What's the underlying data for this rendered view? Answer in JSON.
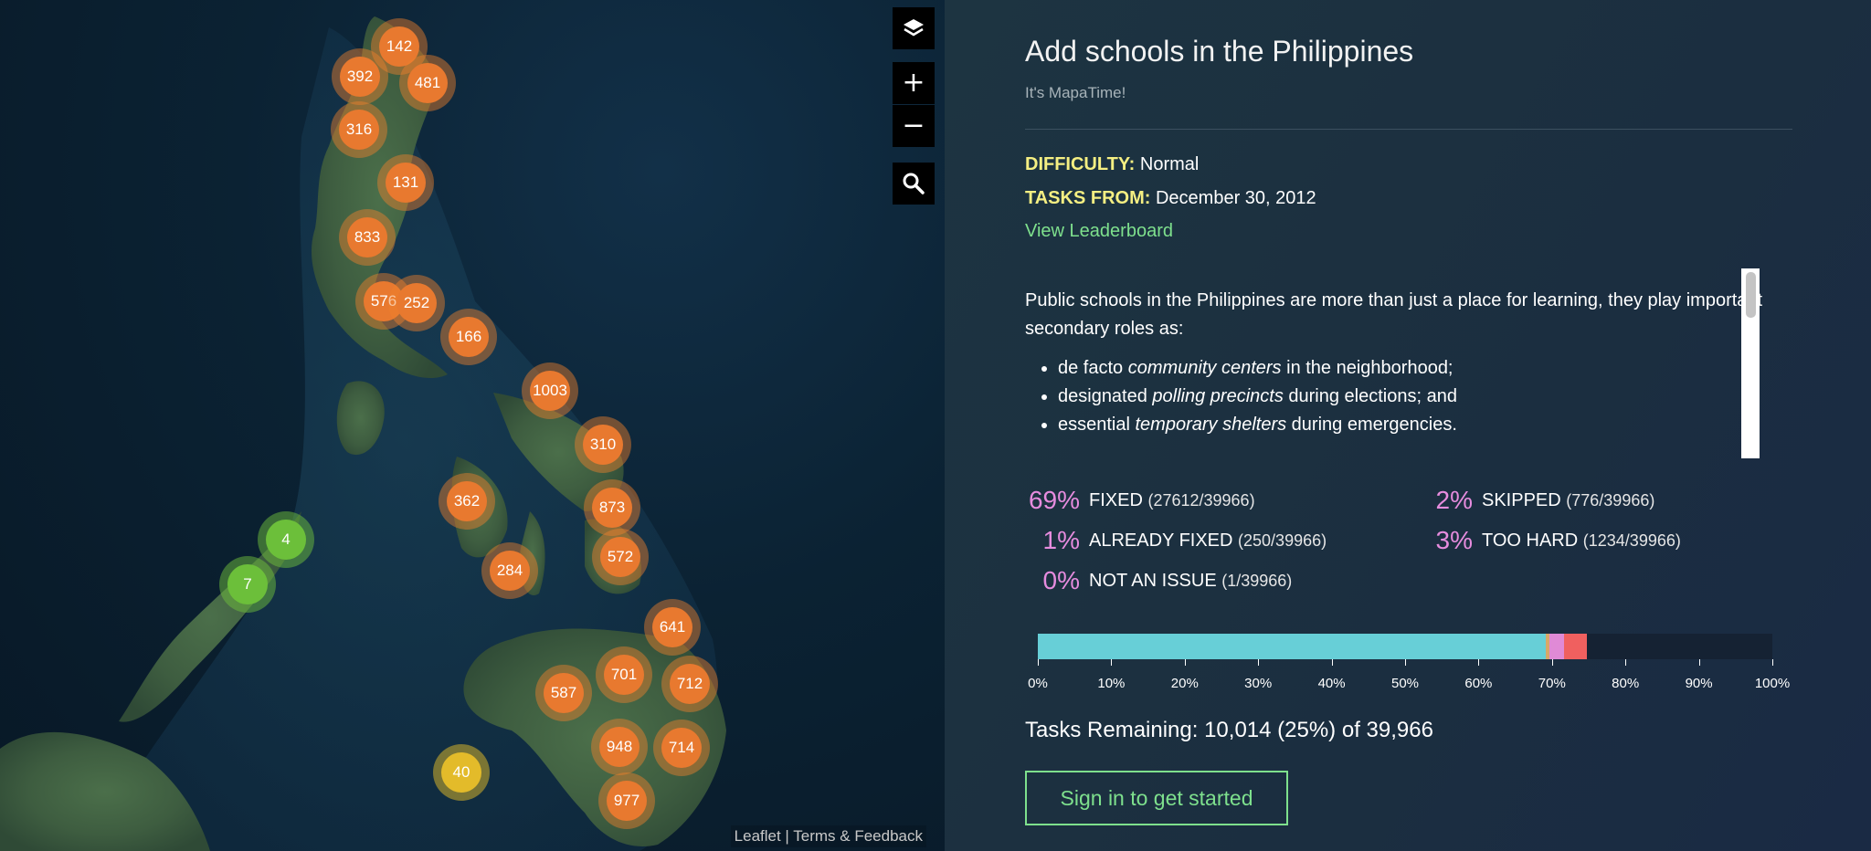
{
  "map": {
    "clusters": [
      {
        "label": "142",
        "color": "orange"
      },
      {
        "label": "392",
        "color": "orange"
      },
      {
        "label": "481",
        "color": "orange"
      },
      {
        "label": "316",
        "color": "orange"
      },
      {
        "label": "131",
        "color": "orange"
      },
      {
        "label": "833",
        "color": "orange"
      },
      {
        "label": "576",
        "color": "orange"
      },
      {
        "label": "252",
        "color": "orange"
      },
      {
        "label": "166",
        "color": "orange"
      },
      {
        "label": "1003",
        "color": "orange"
      },
      {
        "label": "310",
        "color": "orange"
      },
      {
        "label": "362",
        "color": "orange"
      },
      {
        "label": "873",
        "color": "orange"
      },
      {
        "label": "4",
        "color": "green"
      },
      {
        "label": "572",
        "color": "orange"
      },
      {
        "label": "284",
        "color": "orange"
      },
      {
        "label": "7",
        "color": "green"
      },
      {
        "label": "641",
        "color": "orange"
      },
      {
        "label": "701",
        "color": "orange"
      },
      {
        "label": "712",
        "color": "orange"
      },
      {
        "label": "587",
        "color": "orange"
      },
      {
        "label": "948",
        "color": "orange"
      },
      {
        "label": "714",
        "color": "orange"
      },
      {
        "label": "40",
        "color": "yellow"
      },
      {
        "label": "977",
        "color": "orange"
      }
    ],
    "controls": {
      "layers_icon": "layers-icon",
      "zoom_in": "+",
      "zoom_out": "−",
      "search_icon": "search-icon"
    },
    "attribution": {
      "leaflet": "Leaflet",
      "separator": " | ",
      "terms": "Terms & Feedback"
    }
  },
  "panel": {
    "title": "Add schools in the Philippines",
    "subtitle": "It's MapaTime!",
    "difficulty_key": "DIFFICULTY:",
    "difficulty_value": "Normal",
    "tasks_from_key": "TASKS FROM:",
    "tasks_from_value": "December 30, 2012",
    "leaderboard_link": "View Leaderboard",
    "description": {
      "intro": "Public schools in the Philippines are more than just a place for learning, they play important secondary roles as:",
      "bullets": [
        {
          "pre": "de facto ",
          "em": "community centers",
          "post": " in the neighborhood;"
        },
        {
          "pre": "designated ",
          "em": "polling precincts",
          "post": " during elections; and"
        },
        {
          "pre": "essential ",
          "em": "temporary shelters",
          "post": " during emergencies."
        }
      ]
    },
    "stats": [
      {
        "pct": "69%",
        "label": "FIXED",
        "count": "(27612/39966)"
      },
      {
        "pct": "2%",
        "label": "SKIPPED",
        "count": "(776/39966)"
      },
      {
        "pct": "1%",
        "label": "ALREADY FIXED",
        "count": "(250/39966)"
      },
      {
        "pct": "3%",
        "label": "TOO HARD",
        "count": "(1234/39966)"
      },
      {
        "pct": "0%",
        "label": "NOT AN ISSUE",
        "count": "(1/39966)"
      }
    ],
    "progress": {
      "segments": [
        {
          "name": "fixed",
          "fraction": 0.691,
          "color": "#67cfd7"
        },
        {
          "name": "already-fixed",
          "fraction": 0.006,
          "color": "#d8a868"
        },
        {
          "name": "not-an-issue",
          "fraction": 0.0001,
          "color": "#b0b0b0"
        },
        {
          "name": "skipped",
          "fraction": 0.019,
          "color": "#e08ad6"
        },
        {
          "name": "too-hard",
          "fraction": 0.031,
          "color": "#f0605f"
        }
      ],
      "ticks": [
        "0%",
        "10%",
        "20%",
        "30%",
        "40%",
        "50%",
        "60%",
        "70%",
        "80%",
        "90%",
        "100%"
      ]
    },
    "remaining": "Tasks Remaining: 10,014 (25%) of 39,966",
    "signin_label": "Sign in to get started"
  }
}
